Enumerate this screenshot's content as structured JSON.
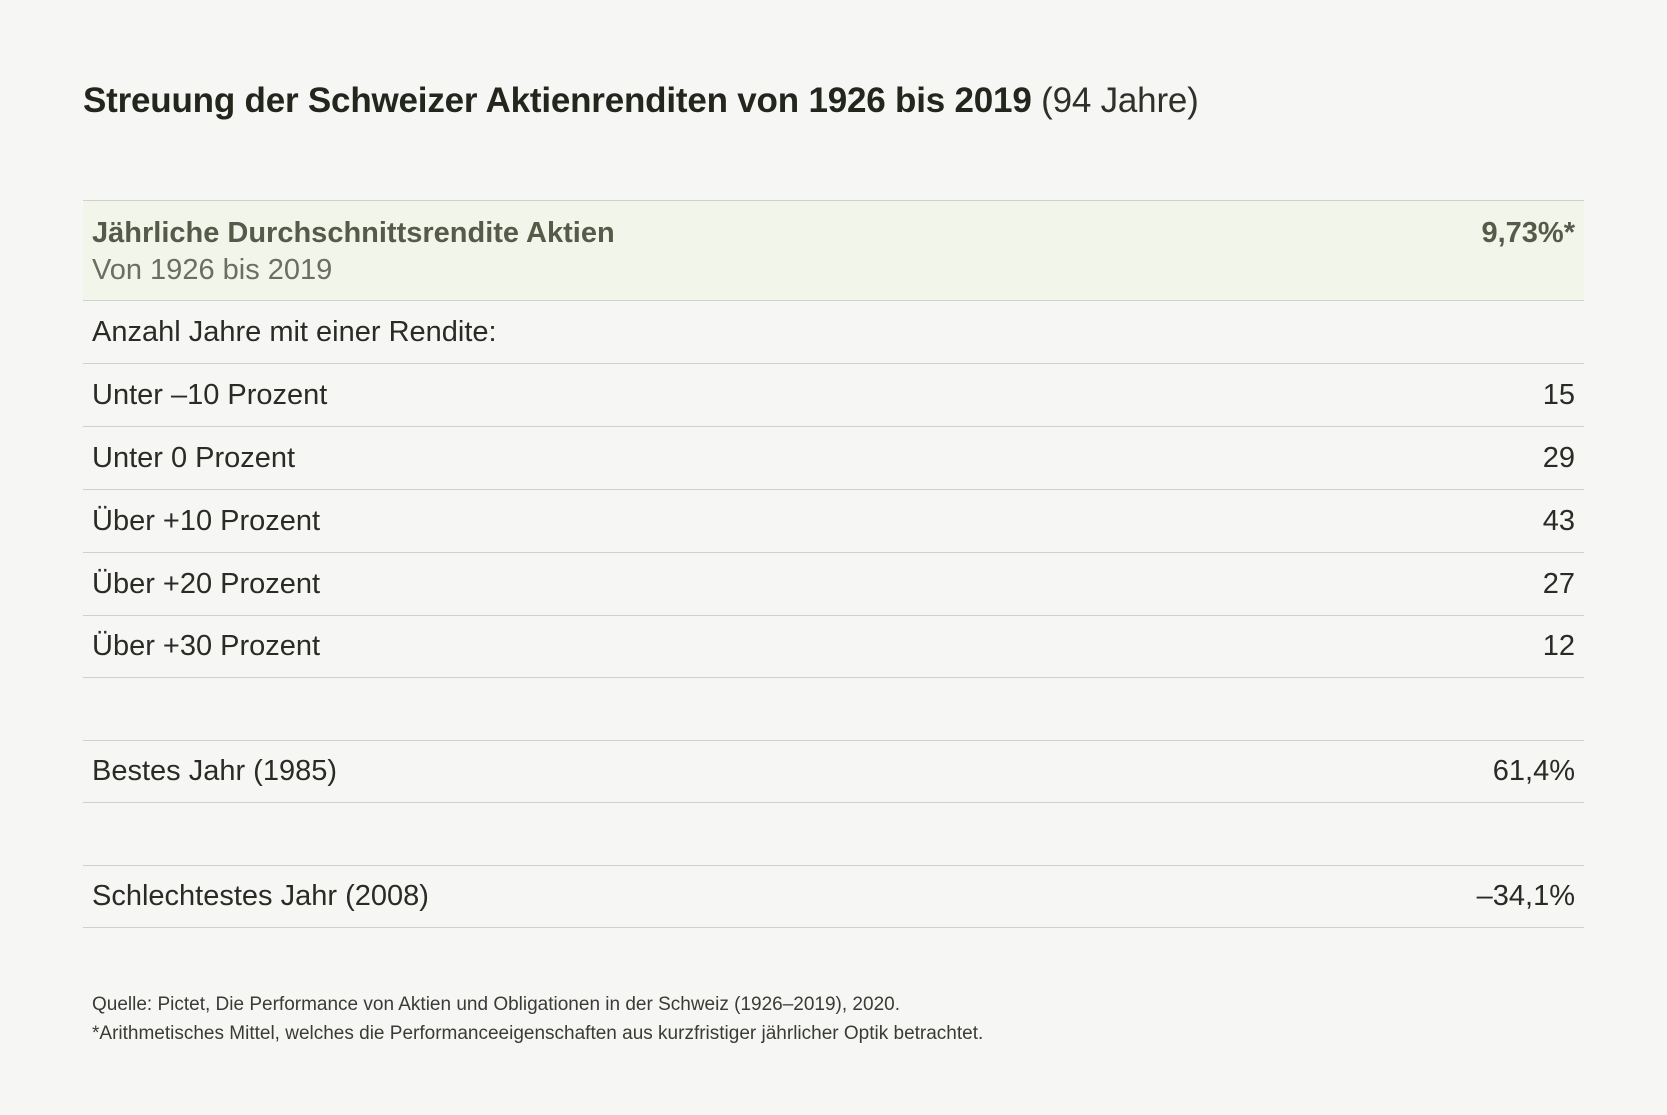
{
  "title": {
    "bold": "Streuung der Schweizer Aktienrenditen von 1926 bis 2019",
    "light": "(94 Jahre)"
  },
  "chart_data": {
    "type": "table",
    "highlight": {
      "label": "Jährliche Durchschnittsrendite Aktien",
      "sublabel": "Von 1926 bis 2019",
      "value": "9,73%*"
    },
    "section_label": "Anzahl Jahre mit einer Rendite:",
    "rows": [
      {
        "label": "Unter –10 Prozent",
        "value": "15"
      },
      {
        "label": "Unter 0 Prozent",
        "value": "29"
      },
      {
        "label": "Über +10 Prozent",
        "value": "43"
      },
      {
        "label": "Über +20 Prozent",
        "value": "27"
      },
      {
        "label": "Über +30 Prozent",
        "value": "12"
      }
    ],
    "best": {
      "label": "Bestes Jahr (1985)",
      "value": "61,4%"
    },
    "worst": {
      "label": "Schlechtestes Jahr (2008)",
      "value": "–34,1%"
    }
  },
  "footnotes": {
    "source": "Quelle: Pictet, Die Performance von Aktien und Obligationen in der Schweiz (1926–2019), 2020.",
    "note": "*Arithmetisches Mittel, welches die Performanceeigenschaften aus kurzfristiger jährlicher Optik betrachtet."
  }
}
